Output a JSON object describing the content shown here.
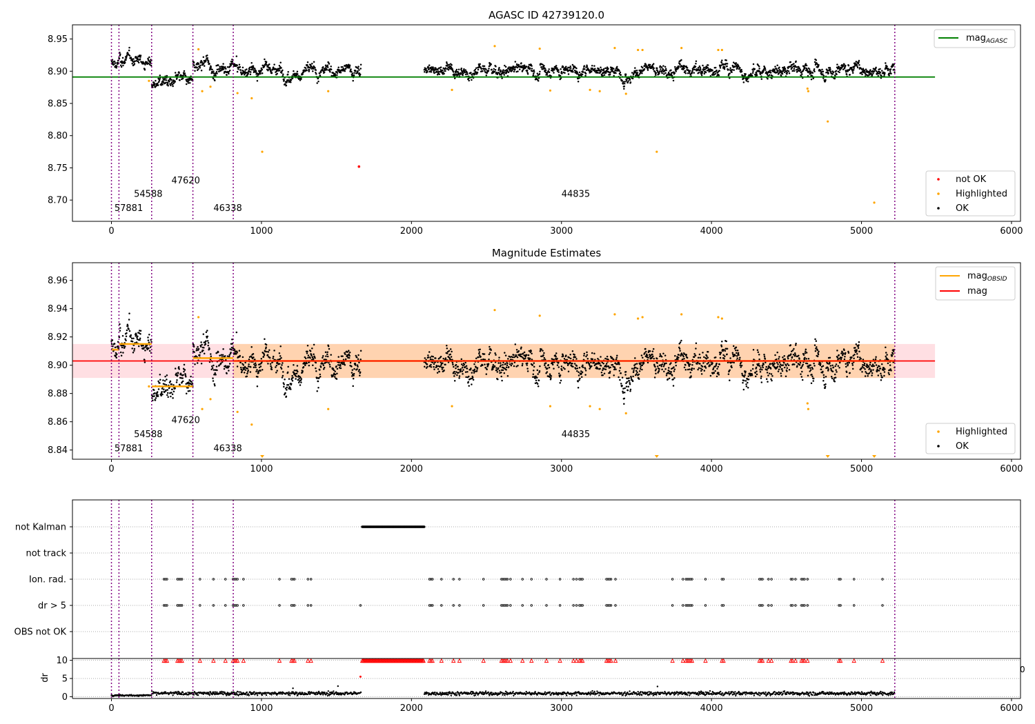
{
  "chart_data": [
    {
      "type": "scatter",
      "title": "AGASC ID 42739120.0",
      "xlim": [
        -260,
        6060
      ],
      "ylim": [
        8.667,
        8.972
      ],
      "xticks": [
        0,
        1000,
        2000,
        3000,
        4000,
        5000,
        6000
      ],
      "yticks": [
        8.7,
        8.75,
        8.8,
        8.85,
        8.9,
        8.95
      ],
      "ytick_labels": [
        "8.70",
        "8.75",
        "8.80",
        "8.85",
        "8.90",
        "8.95"
      ],
      "obsid_boundaries": [
        0,
        50,
        268,
        543,
        812,
        5222
      ],
      "obsid_labels": [
        {
          "x": 20,
          "y": 8.683,
          "text": "57881"
        },
        {
          "x": 150,
          "y": 8.705,
          "text": "54588"
        },
        {
          "x": 400,
          "y": 8.726,
          "text": "47620"
        },
        {
          "x": 680,
          "y": 8.683,
          "text": "46338"
        },
        {
          "x": 3000,
          "y": 8.705,
          "text": "44835"
        }
      ],
      "agasc_mag": {
        "name": "mag_AGASC",
        "value": 8.891,
        "x_range": [
          -260,
          5490
        ],
        "color": "#008000"
      },
      "highlighted_points": [
        {
          "x": 250,
          "y": 8.885
        },
        {
          "x": 580,
          "y": 8.934
        },
        {
          "x": 605,
          "y": 8.869
        },
        {
          "x": 660,
          "y": 8.876
        },
        {
          "x": 840,
          "y": 8.866
        },
        {
          "x": 935,
          "y": 8.858
        },
        {
          "x": 1005,
          "y": 8.775
        },
        {
          "x": 1445,
          "y": 8.869
        },
        {
          "x": 2270,
          "y": 8.871
        },
        {
          "x": 2555,
          "y": 8.939
        },
        {
          "x": 2855,
          "y": 8.935
        },
        {
          "x": 2925,
          "y": 8.87
        },
        {
          "x": 3190,
          "y": 8.871
        },
        {
          "x": 3255,
          "y": 8.869
        },
        {
          "x": 3355,
          "y": 8.936
        },
        {
          "x": 3430,
          "y": 8.865
        },
        {
          "x": 3510,
          "y": 8.933
        },
        {
          "x": 3540,
          "y": 8.933
        },
        {
          "x": 3635,
          "y": 8.775
        },
        {
          "x": 3800,
          "y": 8.936
        },
        {
          "x": 4045,
          "y": 8.933
        },
        {
          "x": 4070,
          "y": 8.933
        },
        {
          "x": 4640,
          "y": 8.873
        },
        {
          "x": 4645,
          "y": 8.869
        },
        {
          "x": 4775,
          "y": 8.822
        },
        {
          "x": 5085,
          "y": 8.696
        }
      ],
      "not_ok_points": [
        {
          "x": 1650,
          "y": 8.752
        }
      ],
      "legend_upper": [
        "mag",
        "AGASC"
      ],
      "legend_lower": [
        "not OK",
        "Highlighted",
        "OK"
      ],
      "colors": {
        "ok": "#000000",
        "highlighted": "#ffa500",
        "not_ok": "#ff0000",
        "boundary": "#800080"
      }
    },
    {
      "type": "scatter",
      "title": "Magnitude Estimates",
      "xlim": [
        -260,
        6060
      ],
      "ylim": [
        8.8335,
        8.9725
      ],
      "xticks": [
        0,
        1000,
        2000,
        3000,
        4000,
        5000,
        6000
      ],
      "yticks": [
        8.84,
        8.86,
        8.88,
        8.9,
        8.92,
        8.94,
        8.96
      ],
      "ytick_labels": [
        "8.84",
        "8.86",
        "8.88",
        "8.90",
        "8.92",
        "8.94",
        "8.96"
      ],
      "obsid_boundaries": [
        0,
        50,
        268,
        543,
        812,
        5222
      ],
      "obsid_labels": [
        {
          "x": 20,
          "y": 8.839,
          "text": "57881"
        },
        {
          "x": 150,
          "y": 8.849,
          "text": "54588"
        },
        {
          "x": 400,
          "y": 8.859,
          "text": "47620"
        },
        {
          "x": 680,
          "y": 8.839,
          "text": "46338"
        },
        {
          "x": 3000,
          "y": 8.849,
          "text": "44835"
        }
      ],
      "mag": {
        "name": "mag",
        "value": 8.903,
        "band": [
          8.891,
          8.915
        ],
        "x_range": [
          -260,
          5490
        ],
        "color": "#ff0000"
      },
      "mag_obsid": [
        {
          "x0": 0,
          "x1": 50,
          "value": 8.911
        },
        {
          "x0": 50,
          "x1": 268,
          "value": 8.915
        },
        {
          "x0": 268,
          "x1": 543,
          "value": 8.885
        },
        {
          "x0": 543,
          "x1": 812,
          "value": 8.905
        },
        {
          "x0": 812,
          "x1": 5222,
          "value": 8.903
        }
      ],
      "highlighted_points": [
        {
          "x": 250,
          "y": 8.885
        },
        {
          "x": 580,
          "y": 8.934
        },
        {
          "x": 605,
          "y": 8.869
        },
        {
          "x": 660,
          "y": 8.876
        },
        {
          "x": 840,
          "y": 8.867
        },
        {
          "x": 935,
          "y": 8.858
        },
        {
          "x": 1445,
          "y": 8.869
        },
        {
          "x": 2270,
          "y": 8.871
        },
        {
          "x": 2555,
          "y": 8.939
        },
        {
          "x": 2855,
          "y": 8.935
        },
        {
          "x": 2925,
          "y": 8.871
        },
        {
          "x": 3190,
          "y": 8.871
        },
        {
          "x": 3255,
          "y": 8.869
        },
        {
          "x": 3355,
          "y": 8.936
        },
        {
          "x": 3430,
          "y": 8.866
        },
        {
          "x": 3510,
          "y": 8.933
        },
        {
          "x": 3540,
          "y": 8.934
        },
        {
          "x": 3800,
          "y": 8.936
        },
        {
          "x": 4045,
          "y": 8.934
        },
        {
          "x": 4070,
          "y": 8.933
        },
        {
          "x": 4640,
          "y": 8.873
        },
        {
          "x": 4645,
          "y": 8.869
        }
      ],
      "off_scale_markers": [
        1005,
        3635,
        4775,
        5085
      ],
      "legend_upper": [
        [
          "mag",
          "OBSID"
        ],
        [
          "mag",
          ""
        ]
      ],
      "legend_lower": [
        "Highlighted",
        "OK"
      ],
      "colors": {
        "band": "#ffd3b0",
        "mag_obsid": "#ffa500"
      }
    },
    {
      "type": "scatter",
      "xlim": [
        -260,
        6060
      ],
      "categories": [
        "not Kalman",
        "not track",
        "Ion. rad.",
        "dr > 5",
        "OBS not OK"
      ],
      "obsid_boundaries": [
        0,
        50,
        268,
        543,
        812,
        5222
      ],
      "not_kalman_range": [
        1672,
        2085
      ],
      "flag_times": [
        350,
        360,
        370,
        440,
        450,
        460,
        470,
        590,
        680,
        760,
        810,
        820,
        830,
        840,
        880,
        1120,
        1200,
        1210,
        1220,
        1310,
        1330,
        2120,
        2130,
        2140,
        2200,
        2280,
        2320,
        2480,
        2600,
        2610,
        2620,
        2630,
        2640,
        2660,
        2740,
        2800,
        2900,
        2990,
        3080,
        3100,
        3120,
        3130,
        3140,
        3300,
        3310,
        3320,
        3330,
        3360,
        3740,
        3810,
        3830,
        3840,
        3850,
        3860,
        3870,
        3960,
        4070,
        4080,
        4320,
        4330,
        4340,
        4380,
        4400,
        4530,
        4540,
        4560,
        4600,
        4610,
        4620,
        4640,
        4850,
        4860,
        4950,
        5140
      ],
      "dr_cap_outlier": {
        "x": 1660,
        "y": 5.5
      }
    },
    {
      "type": "line",
      "xlim": [
        -260,
        6060
      ],
      "ylim": [
        -0.5,
        10.5
      ],
      "ylabel": "dr",
      "yticks": [
        0,
        5,
        10
      ],
      "ytick_labels": [
        "0",
        "5",
        "10"
      ],
      "xticks": [
        0,
        1000,
        2000,
        3000,
        4000,
        5000,
        6000
      ],
      "clipped_tick_label": "0"
    }
  ]
}
